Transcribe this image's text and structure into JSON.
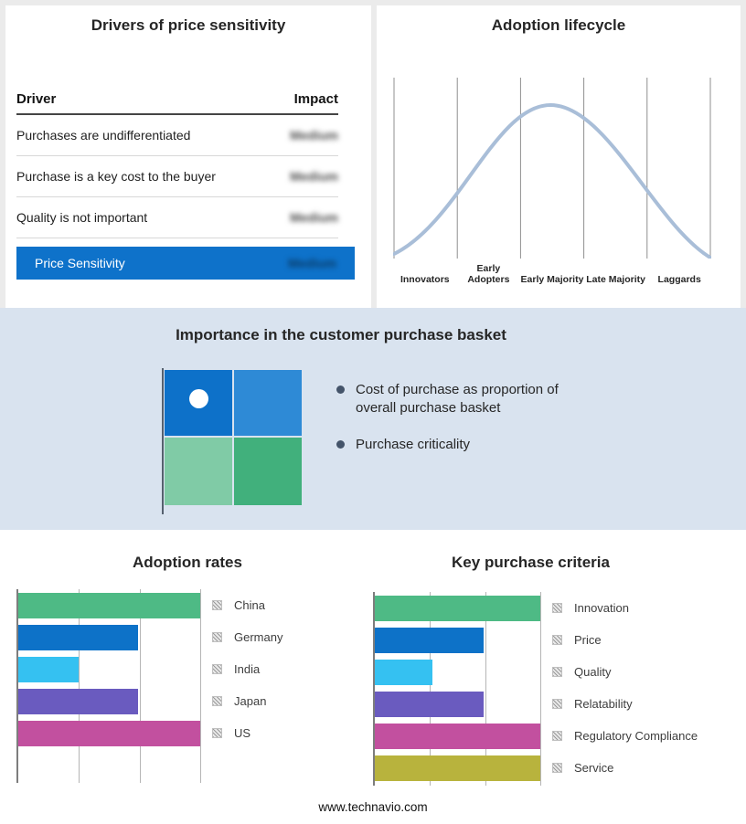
{
  "footer": {
    "url_text": "www.technavio.com"
  },
  "drivers": {
    "title": "Drivers of price sensitivity",
    "header": {
      "driver": "Driver",
      "impact": "Impact"
    },
    "rows": [
      {
        "driver": "Purchases are undifferentiated",
        "impact": "Medium"
      },
      {
        "driver": "Purchase is a key cost to the buyer",
        "impact": "Medium"
      },
      {
        "driver": "Quality is not important",
        "impact": "Medium"
      }
    ],
    "summary": {
      "label": "Price Sensitivity",
      "impact": "Medium",
      "bg": "#0e72ca"
    }
  },
  "lifecycle": {
    "title": "Adoption lifecycle",
    "stages": [
      "Innovators",
      "Early Adopters",
      "Early Majority",
      "Late Majority",
      "Laggards"
    ],
    "curve_color": "#a9bed8",
    "gridline_color": "#8f8f8f"
  },
  "basket": {
    "title": "Importance in the customer purchase basket",
    "bullets": [
      "Cost of purchase as proportion of overall purchase basket",
      "Purchase criticality"
    ],
    "quadrant": {
      "top_left": "#0d71c9",
      "top_right": "#2e8ad6",
      "bottom_left": "#80cba6",
      "bottom_right": "#41b07c",
      "dot_color": "#ffffff"
    }
  },
  "chart_data": [
    {
      "type": "bar",
      "orientation": "horizontal",
      "title": "Adoption rates",
      "categories": [
        "China",
        "Germany",
        "India",
        "Japan",
        "US"
      ],
      "values": [
        100,
        66,
        33,
        66,
        100
      ],
      "colors": [
        "#4eba85",
        "#0d72c8",
        "#35c1f1",
        "#6a5bbf",
        "#c2509f"
      ],
      "xlim": [
        0,
        100
      ],
      "gridlines": [
        33.33,
        66.67,
        100
      ],
      "grid": true,
      "legend_position": "right"
    },
    {
      "type": "bar",
      "orientation": "horizontal",
      "title": "Key purchase criteria",
      "categories": [
        "Innovation",
        "Price",
        "Quality",
        "Relatability",
        "Regulatory Compliance",
        "Service"
      ],
      "values": [
        100,
        66,
        35,
        66,
        100,
        100
      ],
      "colors": [
        "#4eba85",
        "#0d72c8",
        "#35c1f1",
        "#6a5bbf",
        "#c2509f",
        "#b8b33d"
      ],
      "xlim": [
        0,
        100
      ],
      "gridlines": [
        33.33,
        66.67,
        100
      ],
      "grid": true,
      "legend_position": "right"
    }
  ]
}
